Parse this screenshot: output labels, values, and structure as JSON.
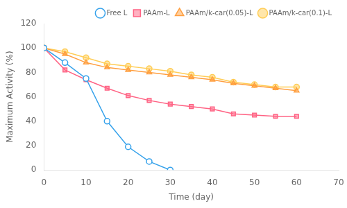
{
  "chart_data": {
    "type": "line",
    "xlabel": "Time (day)",
    "ylabel": "Maximum Activity (%)",
    "xlim": [
      0,
      70
    ],
    "xticks": [
      0,
      10,
      20,
      30,
      40,
      50,
      60,
      70
    ],
    "ylim": [
      0,
      120
    ],
    "yticks": [
      0,
      20,
      40,
      60,
      80,
      100,
      120
    ],
    "grid": false,
    "legend": "upper right",
    "series": [
      {
        "name": "Free L",
        "marker": "circle_open",
        "x": [
          0,
          5,
          10,
          15,
          20,
          25,
          30
        ],
        "values": [
          100,
          88,
          75,
          40,
          19,
          7,
          0
        ]
      },
      {
        "name": "PAAm-L",
        "marker": "square",
        "x": [
          0,
          5,
          10,
          15,
          20,
          25,
          30,
          35,
          40,
          45,
          50,
          55,
          60
        ],
        "values": [
          100,
          82,
          74,
          67,
          61,
          57,
          54,
          52,
          50,
          46,
          45,
          44,
          44
        ]
      },
      {
        "name": "PAAm/k-car(0.05)-L",
        "marker": "triangle",
        "x": [
          0,
          5,
          10,
          15,
          20,
          25,
          30,
          35,
          40,
          45,
          50,
          55,
          60
        ],
        "values": [
          100,
          95,
          88,
          84,
          82,
          80,
          78,
          76,
          74,
          71,
          69,
          67,
          65
        ]
      },
      {
        "name": "PAAm/k-car(0.1)-L",
        "marker": "circle",
        "x": [
          0,
          5,
          10,
          15,
          20,
          25,
          30,
          35,
          40,
          45,
          50,
          55,
          60
        ],
        "values": [
          100,
          97,
          92,
          87,
          85,
          83,
          81,
          78,
          76,
          72,
          70,
          68,
          68
        ]
      }
    ]
  }
}
